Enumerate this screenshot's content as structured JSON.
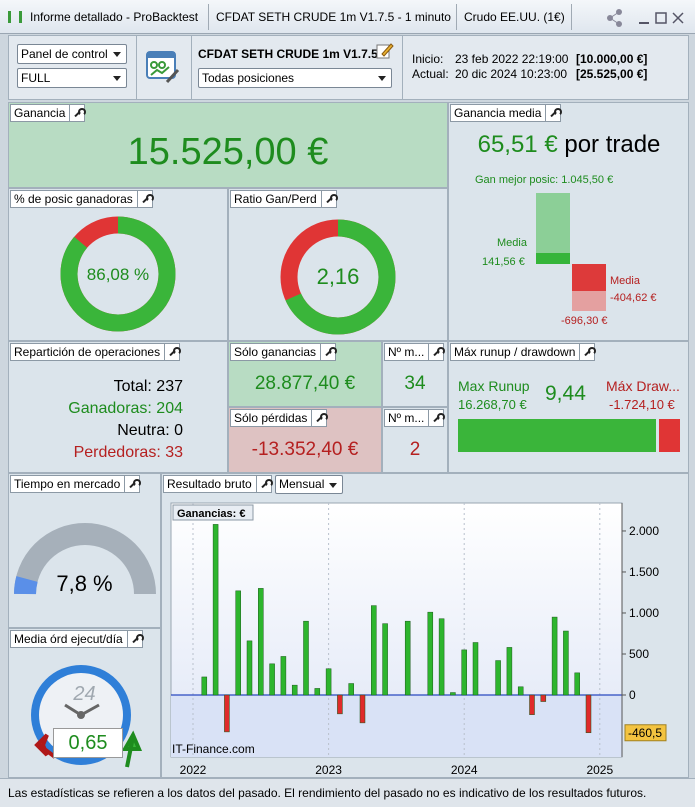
{
  "title_bar": {
    "tabs": [
      "Informe detallado - ProBacktest",
      "CFDAT SETH CRUDE 1m V1.7.5 - 1 minuto",
      "Crudo EE.UU. (1€)"
    ]
  },
  "toolbar": {
    "panel_select": "Panel de control",
    "mode_select": "FULL",
    "system_name": "CFDAT SETH CRUDE 1m V1.7.5",
    "positions_select": "Todas posiciones",
    "start_label": "Inicio:",
    "start_date": "23 feb 2022 22:19:00",
    "start_capital": "[10.000,00 €]",
    "current_label": "Actual:",
    "current_date": "20 dic 2024 10:23:00",
    "current_capital": "[25.525,00 €]"
  },
  "gain": {
    "title": "Ganancia",
    "value": "15.525,00 €"
  },
  "avg_gain": {
    "title": "Ganancia media",
    "value": "65,51 €",
    "unit": "por trade",
    "best": "Gan mejor posic: 1.045,50 €",
    "avg_win_label": "Media",
    "avg_win": "141,56 €",
    "avg_loss_label": "Media",
    "avg_loss": "-404,62 €",
    "worst": "-696,30 €"
  },
  "win_pct": {
    "title": "% de posic ganadoras",
    "value": "86,08 %"
  },
  "ratio": {
    "title": "Ratio Gan/Perd",
    "value": "2,16"
  },
  "distribution": {
    "title": "Repartición de operaciones",
    "rows": [
      "Total: 237",
      "Ganadoras: 204",
      "Neutra: 0",
      "Perdedoras: 33"
    ]
  },
  "only_gains": {
    "title": "Sólo ganancias",
    "value": "28.877,40 €"
  },
  "gains_count": {
    "title": "Nº m...",
    "value": "34"
  },
  "only_losses": {
    "title": "Sólo pérdidas",
    "value": "-13.352,40 €"
  },
  "losses_count": {
    "title": "Nº m...",
    "value": "2"
  },
  "runup": {
    "title": "Máx runup / drawdown",
    "runup_label": "Max Runup",
    "runup": "16.268,70 €",
    "ratio": "9,44",
    "drawdown_label": "Máx Draw...",
    "drawdown": "-1.724,10 €"
  },
  "market_time": {
    "title": "Tiempo en mercado",
    "value": "7,8 %"
  },
  "daily_orders": {
    "title": "Media órd ejecut/día",
    "value": "0,65",
    "clock": "24"
  },
  "gross_result": {
    "title": "Resultado bruto",
    "period_select": "Mensual",
    "chart": {
      "type": "bar",
      "legend": "Ganancias: €",
      "categories": [
        null,
        null,
        null,
        null,
        null,
        null,
        null,
        null,
        null,
        null,
        null,
        null,
        null,
        null,
        null,
        null,
        null,
        null,
        null,
        null,
        null,
        null,
        null,
        null,
        null,
        null,
        null,
        null,
        null,
        null,
        null,
        null,
        null,
        null,
        null
      ],
      "values": [
        220,
        2080,
        -450,
        1270,
        660,
        1300,
        380,
        470,
        120,
        900,
        80,
        320,
        -230,
        140,
        -340,
        1090,
        870,
        null,
        900,
        null,
        1010,
        930,
        30,
        550,
        640,
        null,
        420,
        580,
        100,
        -240,
        -80,
        950,
        780,
        270,
        -460.5
      ],
      "value_labels": [
        null,
        null,
        null,
        null,
        null,
        null,
        null,
        null,
        null,
        null,
        null,
        null,
        null,
        null,
        null,
        null,
        null,
        null,
        null,
        null,
        null,
        null,
        null,
        null,
        null,
        null,
        null,
        null,
        null,
        null,
        null,
        null,
        null,
        null,
        "-460,5"
      ],
      "ylim": [
        -756,
        2341
      ],
      "yticks": [
        {
          "value": 2000,
          "label": "2.000"
        },
        {
          "value": 1500,
          "label": "1.500"
        },
        {
          "value": 1000,
          "label": "1.000"
        },
        500,
        0
      ],
      "xlabels": [
        "2022",
        "2023",
        "2024",
        "2025"
      ],
      "source": "IT-Finance.com",
      "positive_color": "#2db52d",
      "negative_color": "#e02a2a"
    }
  },
  "footer": "Las estadísticas se refieren a los datos del pasado. El rendimiento del pasado no es indicativo de los resultados futuros."
}
